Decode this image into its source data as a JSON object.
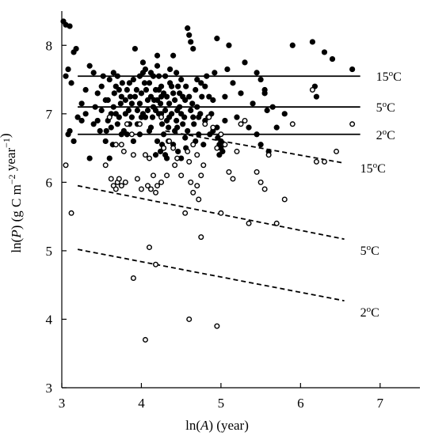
{
  "chart_data": {
    "type": "scatter",
    "title": "",
    "xlabel": {
      "prefix": "ln(",
      "var": "A",
      "suffix": ") (year)"
    },
    "ylabel": {
      "prefix": "ln(",
      "var": "P",
      "suffix": ") (g C m",
      "sup": "−2",
      "suffix2": " year",
      "sup2": "−1",
      "end": ")"
    },
    "xlim": [
      3,
      7.5
    ],
    "ylim": [
      3,
      8.5
    ],
    "x_ticks": [
      3,
      4,
      5,
      6,
      7
    ],
    "y_ticks": [
      3,
      4,
      5,
      6,
      7,
      8
    ],
    "grid": false,
    "legend": "none",
    "series": [
      {
        "marker": "filled-circle",
        "color": "#000000",
        "points": [
          [
            3.02,
            8.35
          ],
          [
            3.05,
            8.3
          ],
          [
            3.1,
            8.28
          ],
          [
            3.08,
            7.65
          ],
          [
            3.15,
            7.9
          ],
          [
            3.18,
            7.95
          ],
          [
            3.05,
            7.55
          ],
          [
            3.12,
            7.45
          ],
          [
            3.2,
            6.95
          ],
          [
            3.25,
            7.15
          ],
          [
            3.08,
            6.7
          ],
          [
            3.15,
            6.6
          ],
          [
            3.3,
            7.35
          ],
          [
            3.35,
            7.7
          ],
          [
            3.4,
            7.6
          ],
          [
            3.45,
            7.3
          ],
          [
            3.5,
            7.05
          ],
          [
            3.55,
            7.2
          ],
          [
            3.58,
            6.9
          ],
          [
            3.62,
            6.8
          ],
          [
            3.65,
            7.1
          ],
          [
            3.68,
            7.4
          ],
          [
            3.7,
            7.55
          ],
          [
            3.72,
            6.95
          ],
          [
            3.75,
            7.25
          ],
          [
            3.78,
            6.75
          ],
          [
            3.8,
            7.0
          ],
          [
            3.82,
            7.35
          ],
          [
            3.85,
            6.85
          ],
          [
            3.88,
            7.15
          ],
          [
            3.9,
            7.5
          ],
          [
            3.92,
            7.95
          ],
          [
            3.95,
            7.05
          ],
          [
            3.98,
            6.7
          ],
          [
            4.0,
            7.3
          ],
          [
            4.02,
            7.6
          ],
          [
            4.05,
            6.95
          ],
          [
            4.08,
            7.2
          ],
          [
            4.1,
            7.45
          ],
          [
            4.12,
            6.8
          ],
          [
            4.15,
            7.1
          ],
          [
            4.18,
            7.35
          ],
          [
            4.2,
            6.6
          ],
          [
            4.22,
            7.0
          ],
          [
            4.25,
            7.25
          ],
          [
            4.28,
            6.5
          ],
          [
            4.3,
            7.55
          ],
          [
            4.32,
            6.9
          ],
          [
            4.35,
            7.15
          ],
          [
            4.38,
            7.4
          ],
          [
            4.4,
            7.85
          ],
          [
            4.42,
            6.75
          ],
          [
            4.45,
            7.05
          ],
          [
            4.48,
            7.3
          ],
          [
            4.5,
            7.5
          ],
          [
            4.52,
            6.85
          ],
          [
            4.55,
            7.2
          ],
          [
            4.58,
            8.25
          ],
          [
            4.6,
            8.15
          ],
          [
            4.62,
            8.05
          ],
          [
            4.65,
            7.95
          ],
          [
            4.68,
            7.35
          ],
          [
            4.7,
            7.1
          ],
          [
            4.72,
            6.7
          ],
          [
            4.75,
            7.45
          ],
          [
            4.78,
            6.55
          ],
          [
            4.8,
            6.9
          ],
          [
            4.82,
            7.55
          ],
          [
            4.85,
            7.25
          ],
          [
            4.88,
            7.0
          ],
          [
            4.9,
            6.75
          ],
          [
            4.92,
            7.6
          ],
          [
            4.95,
            8.1
          ],
          [
            4.96,
            6.65
          ],
          [
            4.98,
            6.55
          ],
          [
            5.0,
            6.5
          ],
          [
            5.02,
            6.45
          ],
          [
            5.05,
            7.25
          ],
          [
            5.08,
            7.65
          ],
          [
            5.1,
            8.0
          ],
          [
            5.15,
            7.45
          ],
          [
            5.2,
            6.95
          ],
          [
            5.25,
            7.3
          ],
          [
            5.3,
            7.75
          ],
          [
            5.35,
            6.8
          ],
          [
            5.4,
            7.15
          ],
          [
            5.45,
            6.7
          ],
          [
            5.5,
            7.5
          ],
          [
            5.55,
            7.35
          ],
          [
            5.58,
            7.05
          ],
          [
            5.6,
            6.45
          ],
          [
            5.65,
            7.1
          ],
          [
            5.7,
            6.8
          ],
          [
            5.8,
            7.0
          ],
          [
            5.9,
            8.0
          ],
          [
            6.15,
            8.05
          ],
          [
            6.18,
            7.4
          ],
          [
            6.2,
            7.25
          ],
          [
            6.3,
            7.9
          ],
          [
            6.4,
            7.8
          ],
          [
            6.65,
            7.65
          ],
          [
            3.6,
            6.35
          ],
          [
            3.55,
            6.6
          ],
          [
            4.3,
            6.4
          ],
          [
            4.5,
            6.35
          ],
          [
            4.4,
            6.55
          ],
          [
            3.45,
            6.9
          ],
          [
            3.5,
            7.4
          ],
          [
            3.85,
            7.45
          ],
          [
            4.05,
            7.65
          ],
          [
            4.15,
            7.55
          ],
          [
            4.2,
            7.7
          ],
          [
            4.25,
            7.0
          ],
          [
            4.35,
            6.95
          ],
          [
            4.6,
            7.25
          ],
          [
            4.65,
            6.95
          ],
          [
            3.75,
            6.7
          ],
          [
            3.95,
            6.85
          ],
          [
            4.1,
            6.75
          ],
          [
            4.45,
            6.8
          ],
          [
            3.3,
            7.0
          ],
          [
            3.4,
            6.85
          ],
          [
            3.65,
            7.6
          ],
          [
            3.7,
            6.85
          ],
          [
            4.0,
            6.95
          ],
          [
            4.25,
            7.4
          ],
          [
            4.55,
            6.65
          ],
          [
            4.7,
            7.5
          ],
          [
            3.6,
            7.5
          ],
          [
            3.62,
            7.0
          ],
          [
            3.66,
            7.3
          ],
          [
            3.74,
            7.15
          ],
          [
            3.76,
            7.45
          ],
          [
            3.84,
            7.05
          ],
          [
            3.86,
            7.25
          ],
          [
            3.94,
            7.35
          ],
          [
            4.06,
            7.35
          ],
          [
            4.08,
            7.05
          ],
          [
            4.12,
            7.25
          ],
          [
            4.14,
            6.95
          ],
          [
            4.16,
            7.2
          ],
          [
            4.18,
            7.05
          ],
          [
            4.22,
            7.35
          ],
          [
            4.24,
            7.15
          ],
          [
            4.26,
            6.85
          ],
          [
            4.28,
            7.3
          ],
          [
            4.3,
            7.05
          ],
          [
            4.32,
            7.25
          ],
          [
            4.34,
            6.8
          ],
          [
            4.36,
            7.45
          ],
          [
            4.38,
            7.0
          ],
          [
            4.42,
            7.2
          ],
          [
            4.44,
            6.9
          ],
          [
            4.46,
            7.4
          ],
          [
            4.48,
            7.1
          ],
          [
            4.52,
            7.25
          ],
          [
            4.54,
            6.95
          ],
          [
            4.56,
            7.4
          ],
          [
            4.62,
            7.05
          ],
          [
            4.66,
            6.85
          ],
          [
            4.74,
            7.0
          ],
          [
            4.76,
            7.25
          ],
          [
            4.84,
            6.95
          ],
          [
            3.52,
            7.55
          ],
          [
            3.56,
            6.75
          ],
          [
            3.68,
            7.0
          ],
          [
            3.72,
            7.35
          ],
          [
            3.8,
            7.2
          ],
          [
            3.88,
            6.95
          ],
          [
            3.92,
            7.25
          ],
          [
            3.98,
            7.15
          ],
          [
            4.02,
            7.0
          ],
          [
            4.04,
            7.45
          ],
          [
            4.2,
            7.2
          ],
          [
            4.28,
            6.7
          ],
          [
            4.4,
            7.3
          ],
          [
            4.5,
            7.0
          ],
          [
            4.58,
            6.75
          ],
          [
            4.64,
            7.15
          ],
          [
            4.68,
            6.6
          ],
          [
            4.72,
            6.95
          ],
          [
            4.8,
            7.4
          ],
          [
            4.86,
            6.7
          ],
          [
            3.42,
            7.1
          ],
          [
            3.48,
            6.75
          ],
          [
            3.58,
            7.2
          ],
          [
            3.64,
            6.55
          ],
          [
            3.82,
            6.7
          ],
          [
            3.9,
            6.6
          ],
          [
            4.26,
            6.55
          ],
          [
            4.34,
            6.6
          ],
          [
            4.46,
            6.45
          ],
          [
            4.56,
            6.5
          ],
          [
            4.18,
            6.4
          ],
          [
            4.24,
            6.45
          ],
          [
            4.32,
            6.35
          ],
          [
            5.0,
            6.6
          ],
          [
            4.98,
            6.4
          ],
          [
            3.25,
            6.9
          ],
          [
            3.35,
            6.35
          ],
          [
            3.1,
            6.75
          ],
          [
            4.12,
            7.6
          ],
          [
            4.22,
            7.55
          ],
          [
            4.36,
            7.65
          ],
          [
            4.44,
            7.6
          ],
          [
            4.02,
            7.75
          ],
          [
            4.2,
            7.85
          ],
          [
            3.98,
            7.55
          ],
          [
            5.5,
            6.55
          ],
          [
            5.45,
            7.6
          ],
          [
            5.55,
            7.3
          ],
          [
            4.9,
            7.2
          ],
          [
            4.95,
            6.8
          ],
          [
            5.05,
            6.9
          ]
        ]
      },
      {
        "marker": "open-circle",
        "color": "#000000",
        "points": [
          [
            3.05,
            6.25
          ],
          [
            3.12,
            5.55
          ],
          [
            3.55,
            6.25
          ],
          [
            3.62,
            6.05
          ],
          [
            3.65,
            5.95
          ],
          [
            3.68,
            5.9
          ],
          [
            3.7,
            6.0
          ],
          [
            3.72,
            6.05
          ],
          [
            3.75,
            5.95
          ],
          [
            3.78,
            6.45
          ],
          [
            3.8,
            6.0
          ],
          [
            3.75,
            6.55
          ],
          [
            3.68,
            6.55
          ],
          [
            3.82,
            6.85
          ],
          [
            3.9,
            6.4
          ],
          [
            3.95,
            6.05
          ],
          [
            4.0,
            5.9
          ],
          [
            4.05,
            6.4
          ],
          [
            4.1,
            6.35
          ],
          [
            4.12,
            5.9
          ],
          [
            4.15,
            6.1
          ],
          [
            4.18,
            5.85
          ],
          [
            4.2,
            5.95
          ],
          [
            4.25,
            6.0
          ],
          [
            4.32,
            6.1
          ],
          [
            4.35,
            6.6
          ],
          [
            4.4,
            6.5
          ],
          [
            4.45,
            6.35
          ],
          [
            4.5,
            6.1
          ],
          [
            4.55,
            5.55
          ],
          [
            4.6,
            6.3
          ],
          [
            4.62,
            6.0
          ],
          [
            4.65,
            5.85
          ],
          [
            4.7,
            5.95
          ],
          [
            4.72,
            5.75
          ],
          [
            4.75,
            6.1
          ],
          [
            4.65,
            6.55
          ],
          [
            4.7,
            6.4
          ],
          [
            4.75,
            5.2
          ],
          [
            4.8,
            6.85
          ],
          [
            4.85,
            6.95
          ],
          [
            4.9,
            6.8
          ],
          [
            4.95,
            6.5
          ],
          [
            5.0,
            6.7
          ],
          [
            5.05,
            6.55
          ],
          [
            5.1,
            6.15
          ],
          [
            5.15,
            6.05
          ],
          [
            5.2,
            6.45
          ],
          [
            5.25,
            6.85
          ],
          [
            5.3,
            6.9
          ],
          [
            5.35,
            5.4
          ],
          [
            5.45,
            6.15
          ],
          [
            5.5,
            6.0
          ],
          [
            5.55,
            5.9
          ],
          [
            5.6,
            6.4
          ],
          [
            5.7,
            5.4
          ],
          [
            5.8,
            5.75
          ],
          [
            5.9,
            6.85
          ],
          [
            6.15,
            7.35
          ],
          [
            6.2,
            6.3
          ],
          [
            6.3,
            6.3
          ],
          [
            6.45,
            6.45
          ],
          [
            6.65,
            6.85
          ],
          [
            3.9,
            4.6
          ],
          [
            4.1,
            5.05
          ],
          [
            4.18,
            4.8
          ],
          [
            4.05,
            3.7
          ],
          [
            4.6,
            4.0
          ],
          [
            4.95,
            3.9
          ],
          [
            5.0,
            5.55
          ],
          [
            3.88,
            6.7
          ],
          [
            4.28,
            6.5
          ],
          [
            4.08,
            5.95
          ],
          [
            3.98,
            6.85
          ],
          [
            4.58,
            6.45
          ],
          [
            4.25,
            6.95
          ],
          [
            3.6,
            6.95
          ],
          [
            4.42,
            6.25
          ],
          [
            4.78,
            6.25
          ]
        ]
      }
    ],
    "reference_lines": [
      {
        "label": "15oC",
        "kind": "solid",
        "x": [
          3.2,
          6.75
        ],
        "y": [
          7.55,
          7.55
        ]
      },
      {
        "label": "5oC",
        "kind": "solid",
        "x": [
          3.2,
          6.75
        ],
        "y": [
          7.1,
          7.1
        ]
      },
      {
        "label": "2oC",
        "kind": "solid",
        "x": [
          3.2,
          6.75
        ],
        "y": [
          6.7,
          6.7
        ]
      },
      {
        "label": "15oC",
        "kind": "dashed",
        "x": [
          4.3,
          6.55
        ],
        "y": [
          6.75,
          6.28
        ]
      },
      {
        "label": "5oC",
        "kind": "dashed",
        "x": [
          3.2,
          6.55
        ],
        "y": [
          5.95,
          5.17
        ]
      },
      {
        "label": "2oC",
        "kind": "dashed",
        "x": [
          3.2,
          6.55
        ],
        "y": [
          5.02,
          4.27
        ]
      }
    ]
  }
}
